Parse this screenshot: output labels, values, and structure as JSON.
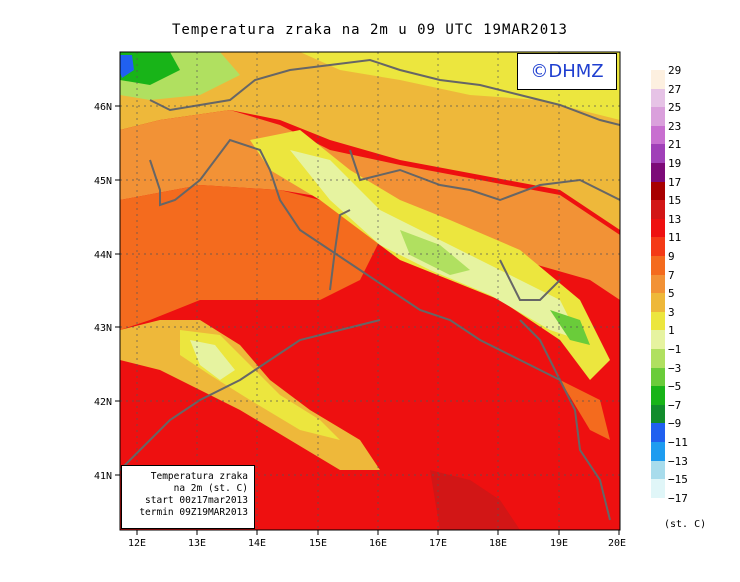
{
  "title": "Temperatura zraka na 2m u 09 UTC 19MAR2013",
  "logo": "©DHMZ",
  "info": {
    "line1": "Temperatura zraka",
    "line2": "na 2m (st. C)",
    "line3": "start 00z17mar2013",
    "line4": "termin 09Z19MAR2013"
  },
  "lat_labels": [
    "46N",
    "45N",
    "44N",
    "43N",
    "42N",
    "41N"
  ],
  "lon_labels": [
    "12E",
    "13E",
    "14E",
    "15E",
    "16E",
    "17E",
    "18E",
    "19E",
    "20E"
  ],
  "legend": {
    "unit": "(st. C)",
    "labels": [
      "29",
      "27",
      "25",
      "23",
      "21",
      "19",
      "17",
      "15",
      "13",
      "11",
      "9",
      "7",
      "5",
      "3",
      "1",
      "−1",
      "−3",
      "−5",
      "−7",
      "−9",
      "−11",
      "−13",
      "−15",
      "−17"
    ],
    "colors": [
      "#fdf0e0",
      "#e6c3e6",
      "#daa0dc",
      "#c86fd0",
      "#a040b8",
      "#7c0a78",
      "#a80000",
      "#d21616",
      "#ee1010",
      "#f43a16",
      "#f46b1e",
      "#f29236",
      "#eeb83a",
      "#ece63e",
      "#e6f3a0",
      "#b0e060",
      "#6acc3a",
      "#18b418",
      "#128c2c",
      "#2060f0",
      "#1e9cf0",
      "#a8dcec",
      "#e0f6f8"
    ]
  }
}
